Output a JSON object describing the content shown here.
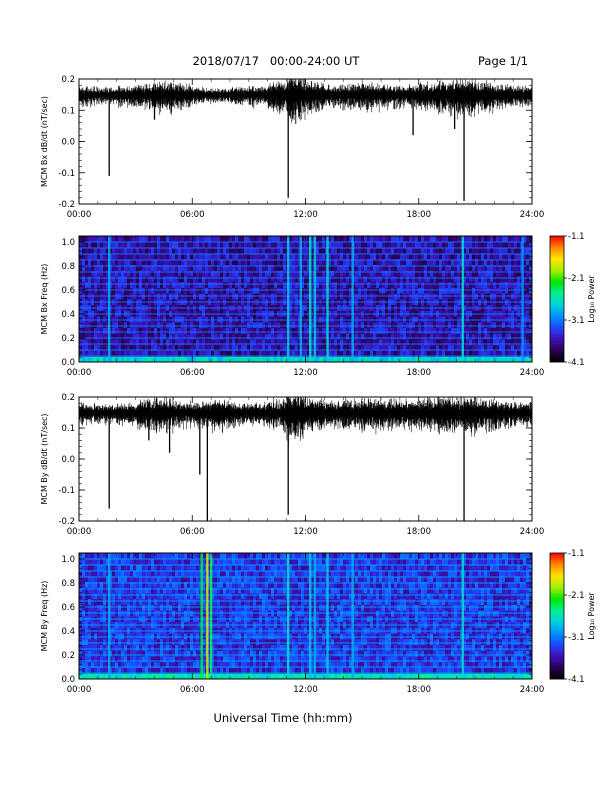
{
  "header": {
    "date_range": "2018/07/17   00:00-24:00 UT",
    "page": "Page 1/1"
  },
  "footer": {
    "xlabel": "Universal Time (hh:mm)"
  },
  "colors": {
    "trace": "#000000",
    "colormap": [
      "#000000",
      "#2a0050",
      "#3c10b4",
      "#1e46ff",
      "#0090ff",
      "#00d2dc",
      "#00f096",
      "#00e600",
      "#a0f000",
      "#ffe600",
      "#ff8c00",
      "#ff0000"
    ]
  },
  "chart_data": [
    {
      "type": "line",
      "name": "bx_dbdt",
      "ylabel": "MCM Bx dB/dt (nT/sec)",
      "ylim": [
        -0.2,
        0.2
      ],
      "yticks": [
        -0.2,
        -0.1,
        0.0,
        0.1,
        0.2
      ],
      "ytick_labels": [
        "-0.2",
        "-0.1",
        "0.0",
        "0.1",
        "0.2"
      ],
      "xlim": [
        "00:00",
        "24:00"
      ],
      "xticks": [
        "00:00",
        "06:00",
        "12:00",
        "18:00",
        "24:00"
      ],
      "baseline": 0.15,
      "noise_amplitude_by_hour": [
        0.018,
        0.016,
        0.02,
        0.024,
        0.028,
        0.024,
        0.016,
        0.014,
        0.015,
        0.02,
        0.028,
        0.045,
        0.03,
        0.022,
        0.024,
        0.026,
        0.024,
        0.022,
        0.028,
        0.032,
        0.035,
        0.03,
        0.024,
        0.02
      ],
      "spikes": [
        {
          "time": "01:36",
          "value": -0.11
        },
        {
          "time": "04:00",
          "value": 0.07
        },
        {
          "time": "11:05",
          "value": -0.18
        },
        {
          "time": "12:15",
          "value": 0.1
        },
        {
          "time": "17:42",
          "value": 0.02
        },
        {
          "time": "19:54",
          "value": 0.04
        },
        {
          "time": "20:24",
          "value": -0.19
        }
      ]
    },
    {
      "type": "heatmap",
      "name": "bx_spectrogram",
      "ylabel": "MCM Bx Freq (Hz)",
      "ylim": [
        0.0,
        1.05
      ],
      "yticks": [
        0.0,
        0.2,
        0.4,
        0.6,
        0.8,
        1.0
      ],
      "ytick_labels": [
        "0.0",
        "0.2",
        "0.4",
        "0.6",
        "0.8",
        "1.0"
      ],
      "xlim": [
        "00:00",
        "24:00"
      ],
      "xticks": [
        "00:00",
        "06:00",
        "12:00",
        "18:00",
        "24:00"
      ],
      "colorbar": {
        "label": "Log₁₀ Power",
        "range": [
          -4.1,
          -1.1
        ],
        "ticks": [
          -4.1,
          -3.1,
          -2.1,
          -1.1
        ],
        "tick_labels": [
          "-4.1",
          "-3.1",
          "-2.1",
          "-1.1"
        ]
      },
      "background_level": -3.55,
      "harmonic_lines_hz": [
        0.05,
        0.1,
        0.15,
        0.2,
        0.25,
        0.3,
        0.35,
        0.4,
        0.45,
        0.5,
        0.55,
        0.6,
        0.65,
        0.7,
        0.75,
        0.8,
        0.85,
        0.9,
        0.95,
        1.0
      ],
      "harmonic_level": -3.1,
      "low_freq_level": -2.7,
      "broadband_events": [
        {
          "time": "01:36",
          "level": -2.9
        },
        {
          "time": "11:05",
          "level": -2.8
        },
        {
          "time": "11:45",
          "level": -2.9
        },
        {
          "time": "12:15",
          "level": -2.6
        },
        {
          "time": "12:30",
          "level": -2.8
        },
        {
          "time": "13:10",
          "level": -2.7
        },
        {
          "time": "14:30",
          "level": -2.9
        },
        {
          "time": "20:20",
          "level": -2.7
        },
        {
          "time": "23:30",
          "level": -3.0
        }
      ]
    },
    {
      "type": "line",
      "name": "by_dbdt",
      "ylabel": "MCM By dB/dt (nT/sec)",
      "ylim": [
        -0.2,
        0.2
      ],
      "yticks": [
        -0.2,
        -0.1,
        0.0,
        0.1,
        0.2
      ],
      "ytick_labels": [
        "-0.2",
        "-0.1",
        "0.0",
        "0.1",
        "0.2"
      ],
      "xlim": [
        "00:00",
        "24:00"
      ],
      "xticks": [
        "00:00",
        "06:00",
        "12:00",
        "18:00",
        "24:00"
      ],
      "baseline": 0.15,
      "noise_amplitude_by_hour": [
        0.02,
        0.018,
        0.022,
        0.03,
        0.034,
        0.026,
        0.024,
        0.03,
        0.022,
        0.022,
        0.03,
        0.05,
        0.03,
        0.026,
        0.03,
        0.034,
        0.03,
        0.028,
        0.032,
        0.036,
        0.038,
        0.03,
        0.026,
        0.022
      ],
      "spikes": [
        {
          "time": "01:36",
          "value": -0.16
        },
        {
          "time": "03:42",
          "value": 0.06
        },
        {
          "time": "04:48",
          "value": 0.02
        },
        {
          "time": "06:24",
          "value": -0.05
        },
        {
          "time": "06:48",
          "value": -0.2
        },
        {
          "time": "11:05",
          "value": -0.18
        },
        {
          "time": "20:24",
          "value": -0.2
        }
      ]
    },
    {
      "type": "heatmap",
      "name": "by_spectrogram",
      "ylabel": "MCM By Freq (Hz)",
      "ylim": [
        0.0,
        1.05
      ],
      "yticks": [
        0.0,
        0.2,
        0.4,
        0.6,
        0.8,
        1.0
      ],
      "ytick_labels": [
        "0.0",
        "0.2",
        "0.4",
        "0.6",
        "0.8",
        "1.0"
      ],
      "xlim": [
        "00:00",
        "24:00"
      ],
      "xticks": [
        "00:00",
        "06:00",
        "12:00",
        "18:00",
        "24:00"
      ],
      "colorbar": {
        "label": "Log₁₀ Power",
        "range": [
          -4.1,
          -1.1
        ],
        "ticks": [
          -4.1,
          -3.1,
          -2.1,
          -1.1
        ],
        "tick_labels": [
          "-4.1",
          "-3.1",
          "-2.1",
          "-1.1"
        ]
      },
      "background_level": -3.35,
      "harmonic_lines_hz": [
        0.05,
        0.1,
        0.15,
        0.2,
        0.25,
        0.3,
        0.35,
        0.4,
        0.45,
        0.5,
        0.55,
        0.6,
        0.65,
        0.7,
        0.75,
        0.8,
        0.85,
        0.9,
        0.95,
        1.0
      ],
      "harmonic_level": -2.95,
      "low_freq_level": -2.6,
      "broadband_events": [
        {
          "time": "01:36",
          "level": -2.9
        },
        {
          "time": "06:30",
          "level": -2.3
        },
        {
          "time": "06:48",
          "level": -1.8
        },
        {
          "time": "07:00",
          "level": -2.4
        },
        {
          "time": "11:05",
          "level": -2.7
        },
        {
          "time": "12:15",
          "level": -2.8
        },
        {
          "time": "12:30",
          "level": -2.9
        },
        {
          "time": "13:10",
          "level": -2.8
        },
        {
          "time": "14:30",
          "level": -2.9
        },
        {
          "time": "20:20",
          "level": -2.7
        }
      ]
    }
  ]
}
